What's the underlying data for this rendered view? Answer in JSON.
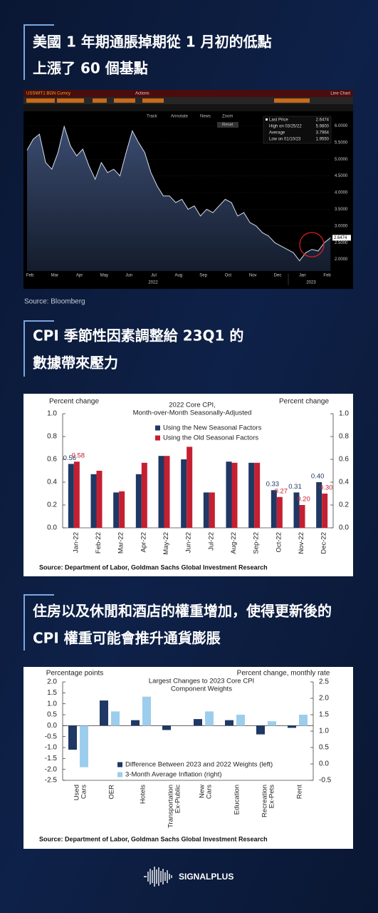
{
  "headings": [
    [
      "美國 1 年期通脹掉期從 1 月初的低點",
      "上漲了 60 個基點"
    ],
    [
      "CPI 季節性因素調整給 23Q1 的",
      "數據帶來壓力"
    ],
    [
      "住房以及休閒和酒店的權重增加，使得更新後的",
      "CPI 權重可能會推升通貨膨脹"
    ]
  ],
  "brand": "SIGNALPLUS",
  "chart_data": [
    {
      "type": "area",
      "toolbar": [
        "USSWIT1 BGN Curncy",
        "Actions",
        "Line Chart",
        "Track",
        "Annotate",
        "News",
        "Zoom",
        "Reset"
      ],
      "categories": [
        "Feb",
        null,
        null,
        null,
        "Mar",
        null,
        null,
        null,
        "Apr",
        null,
        null,
        null,
        "May",
        null,
        null,
        null,
        "Jun",
        null,
        null,
        null,
        "Jul",
        null,
        null,
        null,
        "Aug",
        null,
        null,
        null,
        "Sep",
        null,
        null,
        null,
        "Oct",
        null,
        null,
        null,
        "Nov",
        null,
        null,
        null,
        "Dec",
        null,
        null,
        null,
        "Jan",
        null,
        null,
        null,
        "Feb",
        null
      ],
      "values": [
        5.27,
        5.6,
        5.75,
        4.9,
        4.7,
        5.2,
        5.98,
        5.4,
        5.1,
        5.3,
        4.8,
        4.4,
        4.9,
        4.6,
        4.7,
        4.5,
        5.2,
        5.85,
        5.5,
        5.2,
        4.6,
        4.2,
        3.9,
        3.9,
        3.7,
        3.8,
        3.5,
        3.6,
        3.3,
        3.5,
        3.4,
        3.6,
        3.8,
        3.7,
        3.3,
        3.4,
        3.1,
        3.0,
        2.8,
        2.7,
        2.5,
        2.4,
        2.3,
        2.2,
        1.955,
        2.2,
        2.3,
        2.25,
        2.5,
        2.6474
      ],
      "color": "#d4dcea",
      "annotations": [
        "2022",
        "2023"
      ],
      "stats": [
        {
          "label": "Last Price",
          "value": "2.6474"
        },
        {
          "label": "High on 03/25/22",
          "value": "5.9800"
        },
        {
          "label": "Average",
          "value": "3.7964"
        },
        {
          "label": "Low on 01/10/23",
          "value": "1.9550"
        }
      ],
      "ylim": [
        1.65,
        6.35
      ],
      "yticks": [
        {
          "value": 2,
          "label": "2.0000"
        },
        {
          "value": 2.5,
          "label": "2.5000"
        },
        {
          "value": 3,
          "label": "3.0000"
        },
        {
          "value": 3.5,
          "label": "3.5000"
        },
        {
          "value": 4,
          "label": "4.0000"
        },
        {
          "value": 4.5,
          "label": "4.5000"
        },
        {
          "value": 5,
          "label": "5.0000"
        },
        {
          "value": 5.5,
          "label": "5.5000"
        },
        {
          "value": 6,
          "label": "6.0000"
        }
      ],
      "grid": true,
      "source": "Source:  Bloomberg"
    },
    {
      "type": "bar",
      "title": [
        "2022 Core CPI,",
        "Month-over-Month  Seasonally-Adjusted"
      ],
      "ylabel": "Percent change",
      "y2label": "Percent change",
      "categories": [
        "Jan-22",
        "Feb-22",
        "Mar-22",
        "Apr-22",
        "May-22",
        "Jun-22",
        "Jul-22",
        "Aug-22",
        "Sep-22",
        "Oct-22",
        "Nov-22",
        "Dec-22"
      ],
      "series": [
        {
          "name": "Using the New Seasonal Factors",
          "color": "#1f3864",
          "values": [
            0.56,
            0.47,
            0.31,
            0.47,
            0.63,
            0.6,
            0.31,
            0.58,
            0.57,
            0.33,
            0.31,
            0.4
          ],
          "value_labels": [
            "0.56",
            null,
            null,
            null,
            null,
            null,
            null,
            null,
            null,
            "0.33",
            "0.31",
            "0.40"
          ]
        },
        {
          "name": "Using the Old Seasonal Factors",
          "color": "#c42032",
          "values": [
            0.58,
            0.5,
            0.32,
            0.57,
            0.63,
            0.71,
            0.31,
            0.57,
            0.57,
            0.27,
            0.2,
            0.3
          ],
          "value_labels": [
            "0.58",
            null,
            null,
            null,
            null,
            null,
            null,
            null,
            null,
            "0.27",
            "0.20",
            "0.30"
          ]
        }
      ],
      "ylim": [
        0,
        1
      ],
      "yticks": [
        {
          "value": 0,
          "label": "0.0"
        },
        0.2,
        0.4,
        0.6,
        0.8,
        {
          "value": 1,
          "label": "1.0"
        }
      ],
      "y2lim": [
        0,
        1
      ],
      "y2ticks": [
        {
          "value": 0,
          "label": "0.0"
        },
        0.2,
        0.4,
        0.6,
        0.8,
        {
          "value": 1,
          "label": "1.0"
        }
      ],
      "legend": "upper center",
      "source": "Source: Department of Labor, Goldman Sachs Global Investment Research"
    },
    {
      "type": "bar",
      "title": [
        "Largest Changes to 2023 Core CPI",
        "Component Weights"
      ],
      "ylabel": "Percentage points",
      "y2label": "Percent change, monthly rate",
      "categories": [
        [
          "Used",
          "Cars"
        ],
        [
          "OER"
        ],
        [
          "Hotels"
        ],
        [
          "Transportation",
          "Ex-Public"
        ],
        [
          "New",
          "Cars"
        ],
        [
          "Education"
        ],
        [
          "Recreation",
          "Ex-Pets"
        ],
        [
          "Rent"
        ]
      ],
      "series": [
        {
          "name": "Difference Between 2023 and 2022 Weights (left)",
          "color": "#1f3864",
          "values": [
            -1.1,
            1.15,
            0.25,
            -0.2,
            0.3,
            0.25,
            -0.4,
            -0.1
          ]
        },
        {
          "name": "3-Month Average Inflation (right)",
          "color": "#9dcdec",
          "axis": "y2",
          "values": [
            -0.1,
            1.6,
            2.05,
            null,
            1.6,
            1.5,
            1.3,
            1.5
          ]
        }
      ],
      "ylim": [
        -2.5,
        2
      ],
      "yticks": [
        {
          "value": 2,
          "label": "2.0"
        },
        1.5,
        {
          "value": 1,
          "label": "1.0"
        },
        0.5,
        {
          "value": 0,
          "label": "0.0"
        },
        -0.5,
        {
          "value": -1,
          "label": "-1.0"
        },
        -1.5,
        {
          "value": -2,
          "label": "-2.0"
        },
        -2.5
      ],
      "y2lim": [
        -0.5,
        2.5
      ],
      "y2ticks": [
        2.5,
        {
          "value": 2,
          "label": "2.0"
        },
        1.5,
        {
          "value": 1,
          "label": "1.0"
        },
        0.5,
        {
          "value": 0,
          "label": "0.0"
        },
        -0.5
      ],
      "legend": "lower center",
      "source": "Source: Department of Labor, Goldman Sachs Global Investment Research"
    }
  ]
}
